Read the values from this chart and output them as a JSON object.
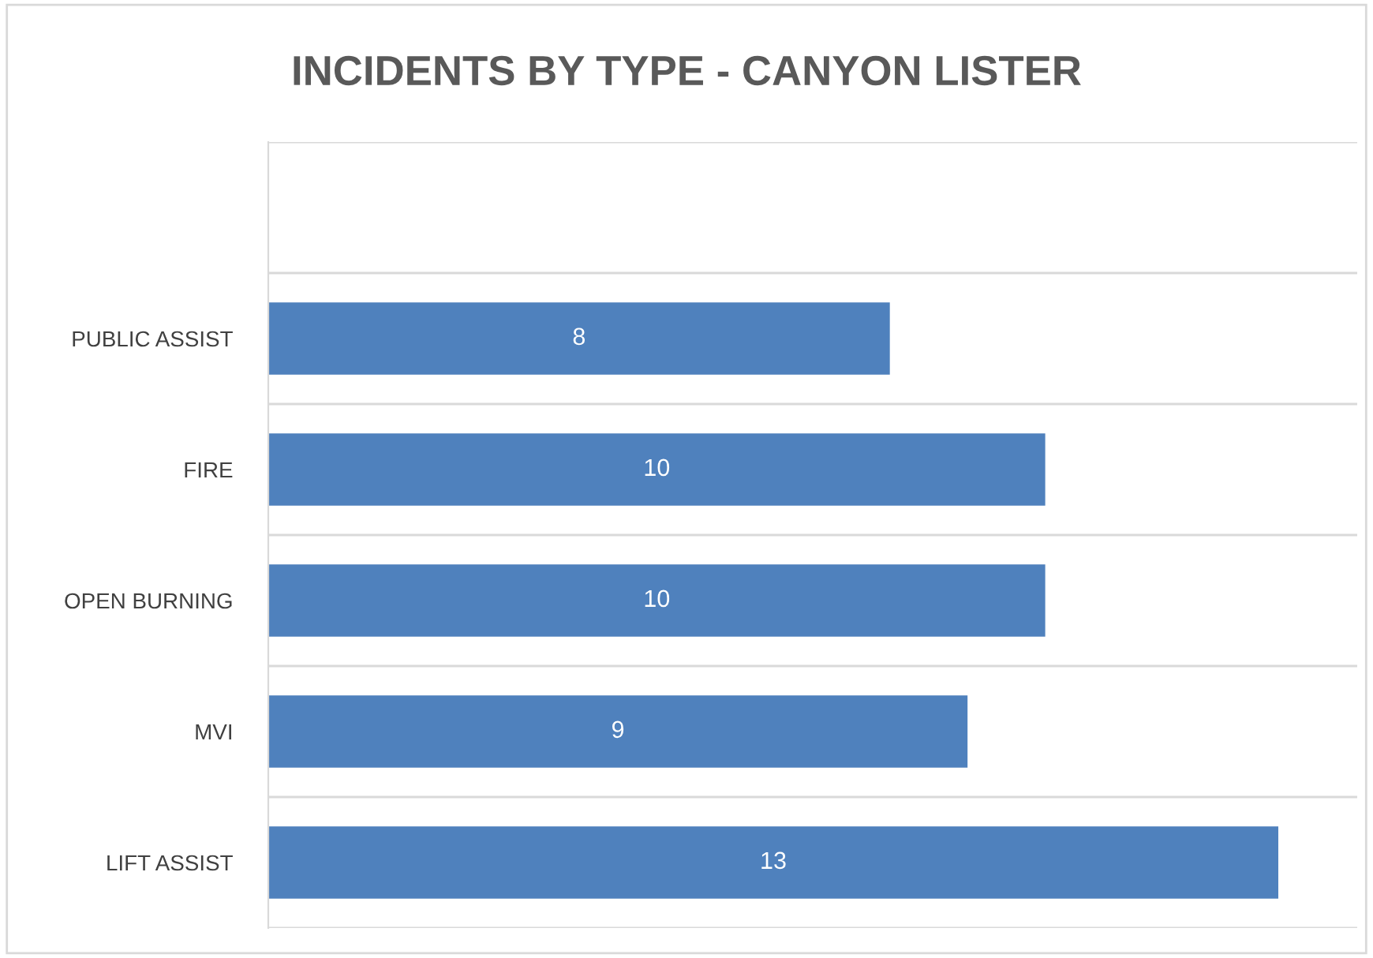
{
  "chart_data": {
    "type": "bar",
    "orientation": "horizontal",
    "title": "INCIDENTS BY TYPE - CANYON LISTER",
    "categories": [
      null,
      "PUBLIC ASSIST",
      "FIRE",
      "OPEN BURNING",
      "MVI",
      "LIFT ASSIST"
    ],
    "values": [
      null,
      8,
      10,
      10,
      9,
      13
    ],
    "color": "#4f81bd",
    "data_labels": true,
    "grid": "y",
    "legend": false,
    "tick_labels": "y"
  }
}
